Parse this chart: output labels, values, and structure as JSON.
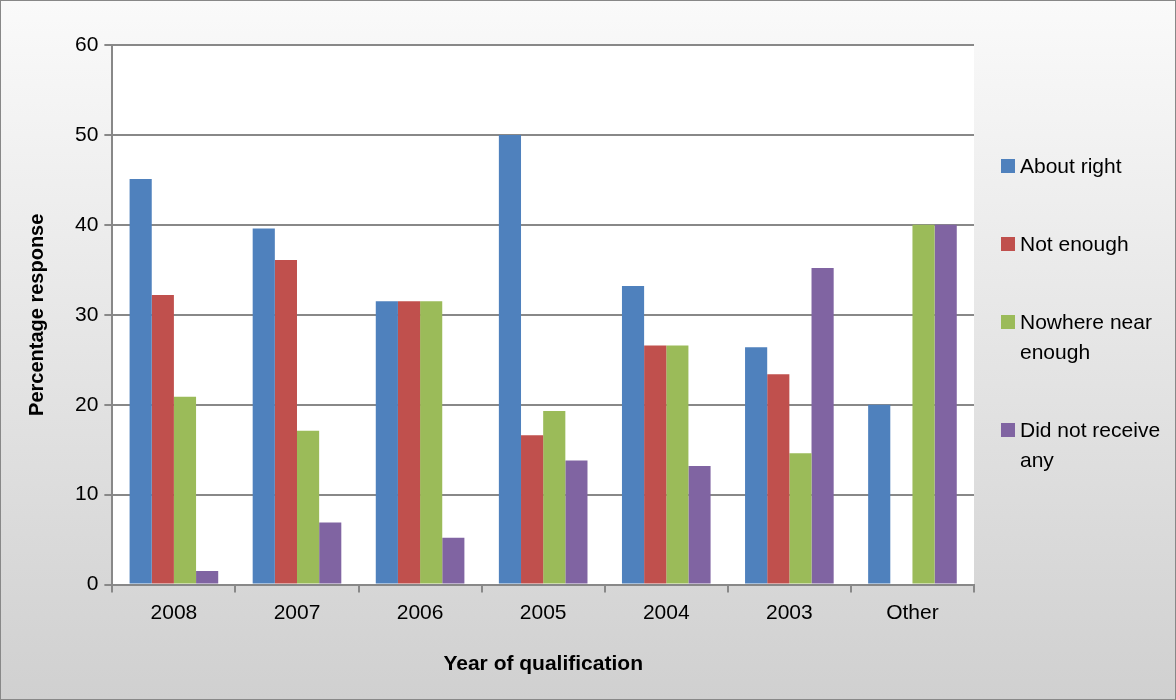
{
  "chart_data": {
    "type": "bar",
    "xlabel": "Year of qualification",
    "ylabel": "Percentage response",
    "categories": [
      "2008",
      "2007",
      "2006",
      "2005",
      "2004",
      "2003",
      "Other"
    ],
    "series": [
      {
        "name": "About right",
        "color": "#4f81bd",
        "values": [
          45.1,
          39.6,
          31.5,
          50,
          33.2,
          26.4,
          20
        ]
      },
      {
        "name": "Not enough",
        "color": "#c0504d",
        "values": [
          32.2,
          36.1,
          31.5,
          16.6,
          26.6,
          23.4,
          0
        ]
      },
      {
        "name": "Nowhere near enough",
        "color": "#9bbb59",
        "values": [
          20.9,
          17.1,
          31.5,
          19.3,
          26.6,
          14.6,
          40
        ]
      },
      {
        "name": "Did not receive any",
        "color": "#8064a2",
        "values": [
          1.5,
          6.9,
          5.2,
          13.8,
          13.2,
          35.2,
          40
        ]
      }
    ],
    "ylim": [
      0,
      60
    ],
    "yticks": [
      0,
      10,
      20,
      30,
      40,
      50,
      60
    ],
    "grid": "y",
    "legend": "right"
  }
}
